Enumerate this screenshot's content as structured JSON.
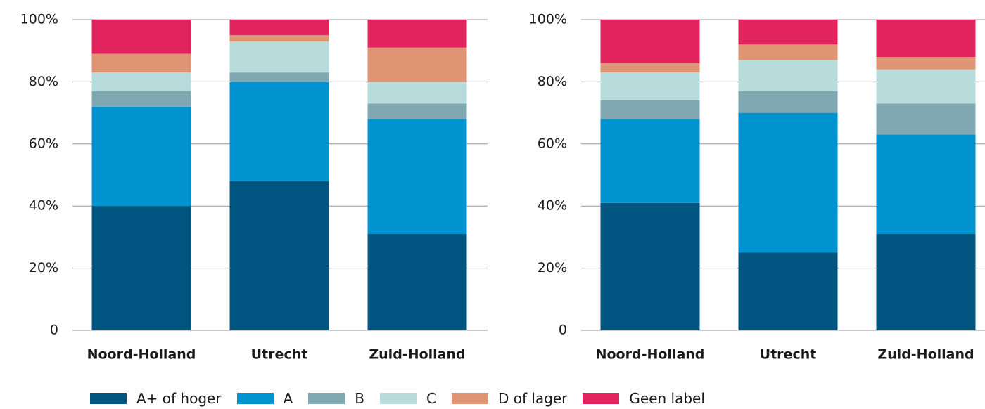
{
  "chart_data": [
    {
      "type": "bar",
      "stacked": true,
      "categories": [
        "Noord-Holland",
        "Utrecht",
        "Zuid-Holland"
      ],
      "series": [
        {
          "values": [
            40,
            48,
            31
          ]
        },
        {
          "values": [
            32,
            32,
            37
          ]
        },
        {
          "values": [
            5,
            3,
            5
          ]
        },
        {
          "values": [
            6,
            10,
            7
          ]
        },
        {
          "values": [
            6,
            2,
            11
          ]
        },
        {
          "values": [
            11,
            5,
            9
          ]
        }
      ],
      "ylim": [
        0,
        100
      ],
      "yticks": [
        0,
        {
          "value": 20,
          "label": "20%"
        },
        {
          "value": 40,
          "label": "40%"
        },
        {
          "value": 60,
          "label": "60%"
        },
        {
          "value": 80,
          "label": "80%"
        },
        {
          "value": 100,
          "label": "100%"
        }
      ],
      "grid": true
    },
    {
      "type": "bar",
      "stacked": true,
      "categories": [
        "Noord-Holland",
        "Utrecht",
        "Zuid-Holland"
      ],
      "series": [
        {
          "values": [
            41,
            25,
            31
          ]
        },
        {
          "values": [
            27,
            45,
            32
          ]
        },
        {
          "values": [
            6,
            7,
            10
          ]
        },
        {
          "values": [
            9,
            10,
            11
          ]
        },
        {
          "values": [
            3,
            5,
            4
          ]
        },
        {
          "values": [
            14,
            8,
            12
          ]
        }
      ],
      "ylim": [
        0,
        100
      ],
      "yticks": [
        0,
        {
          "value": 20,
          "label": "20%"
        },
        {
          "value": 40,
          "label": "40%"
        },
        {
          "value": 60,
          "label": "60%"
        },
        {
          "value": 80,
          "label": "80%"
        },
        {
          "value": 100,
          "label": "100%"
        }
      ],
      "grid": true
    }
  ],
  "legend": [
    {
      "name": "A+ of hoger",
      "color": "#005580"
    },
    {
      "name": "A",
      "color": "#0093d0"
    },
    {
      "name": "B",
      "color": "#7fa8b3"
    },
    {
      "name": "C",
      "color": "#b8dcdc"
    },
    {
      "name": "D of lager",
      "color": "#df9573"
    },
    {
      "name": "Geen label",
      "color": "#e2245e"
    }
  ]
}
